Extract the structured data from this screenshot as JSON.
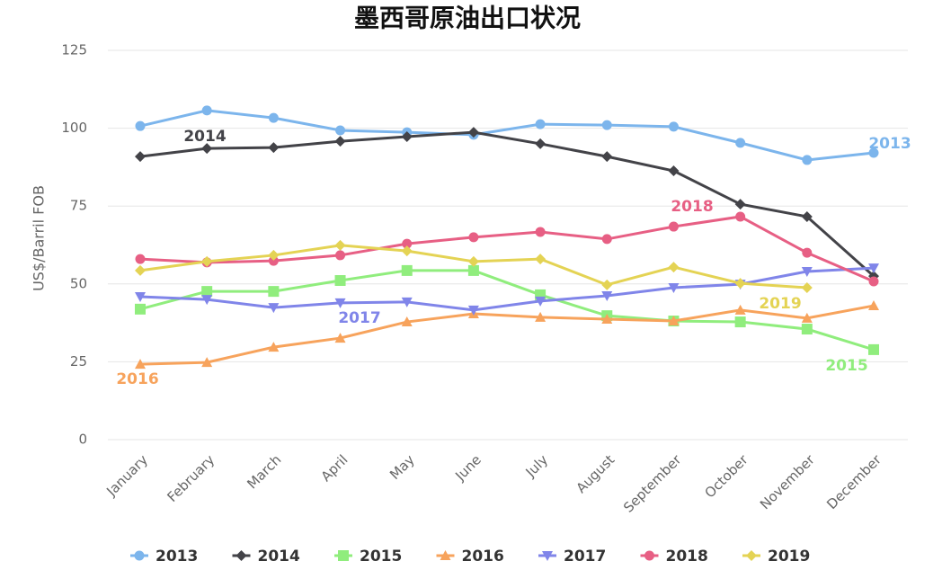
{
  "chart_data": {
    "type": "line",
    "title": "墨西哥原油出口状况",
    "y_label": "US$/Barril FOB",
    "categories": [
      "January",
      "February",
      "March",
      "April",
      "May",
      "June",
      "July",
      "August",
      "September",
      "October",
      "November",
      "December"
    ],
    "ylim": [
      0,
      125
    ],
    "yticks": [
      0,
      25,
      50,
      75,
      100,
      125
    ],
    "grid": true,
    "legend": "bottom",
    "series": [
      {
        "name": "2013",
        "color": "#7cb5ec",
        "marker": "circle",
        "values": [
          100.7,
          105.7,
          103.3,
          99.3,
          98.7,
          97.9,
          101.3,
          101,
          100.5,
          95.3,
          89.8,
          92.1
        ]
      },
      {
        "name": "2014",
        "color": "#434348",
        "marker": "diamond",
        "values": [
          90.9,
          93.5,
          93.8,
          95.8,
          97.3,
          98.7,
          95,
          90.9,
          86.3,
          75.6,
          71.6,
          52.5
        ]
      },
      {
        "name": "2015",
        "color": "#90ed7d",
        "marker": "square",
        "values": [
          41.9,
          47.6,
          47.6,
          51.1,
          54.3,
          54.3,
          46.5,
          39.8,
          38.1,
          37.8,
          35.5,
          28.9
        ]
      },
      {
        "name": "2016",
        "color": "#f7a35c",
        "marker": "triangle",
        "values": [
          24.2,
          24.8,
          29.7,
          32.6,
          37.8,
          40.4,
          39.3,
          38.7,
          38.1,
          41.6,
          39,
          43
        ]
      },
      {
        "name": "2017",
        "color": "#8085e9",
        "marker": "triangle-down",
        "values": [
          45.9,
          45,
          42.4,
          43.9,
          44.2,
          41.6,
          44.5,
          46.2,
          48.8,
          49.9,
          54,
          55.1
        ]
      },
      {
        "name": "2018",
        "color": "#e75f84",
        "marker": "circle",
        "values": [
          58,
          56.9,
          57.4,
          59.2,
          62.9,
          65,
          66.7,
          64.4,
          68.4,
          71.6,
          60,
          50.8
        ]
      },
      {
        "name": "2019",
        "color": "#e4d354",
        "marker": "diamond",
        "values": [
          54.3,
          57.2,
          59.2,
          62.4,
          60.6,
          57.2,
          58,
          49.7,
          55.4,
          50.2,
          48.8,
          null
        ]
      }
    ]
  }
}
